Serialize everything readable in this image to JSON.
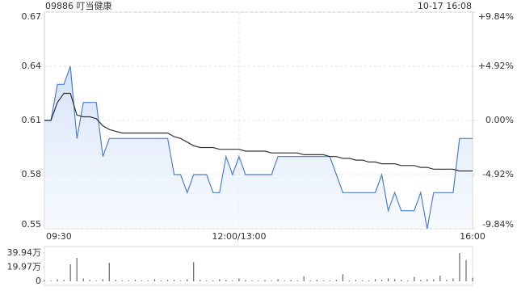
{
  "header": {
    "title": "09886 叮当健康",
    "time": "10-17 16:08"
  },
  "chart_data": [
    {
      "type": "line",
      "x": [
        0,
        5,
        10,
        15,
        20,
        25,
        30,
        35,
        40,
        45,
        50,
        55,
        60,
        65,
        70,
        75,
        80,
        85,
        90,
        95,
        100,
        105,
        110,
        115,
        120,
        125,
        130,
        135,
        140,
        145,
        150,
        155,
        160,
        165,
        170,
        175,
        180,
        185,
        190,
        195,
        200,
        205,
        210,
        215,
        220,
        225,
        230,
        235,
        240,
        245,
        250,
        255,
        260,
        265,
        270,
        275,
        280,
        285,
        290,
        295,
        300,
        305,
        310,
        315,
        320,
        325,
        330
      ],
      "xlim": [
        0,
        330
      ],
      "xticks": [
        {
          "value": 0,
          "label": "09:30"
        },
        {
          "value": 150,
          "label": "12:00/13:00"
        },
        {
          "value": 330,
          "label": "16:00"
        }
      ],
      "ylim": [
        0.55,
        0.67
      ],
      "yticks": [
        0.55,
        0.58,
        0.61,
        0.64,
        0.67
      ],
      "y2lim": [
        -9.84,
        9.84
      ],
      "y2ticks": [
        {
          "value": -9.84,
          "label": "-9.84%"
        },
        {
          "value": -4.92,
          "label": "-4.92%"
        },
        {
          "value": 0,
          "label": "0.00%"
        },
        {
          "value": 4.92,
          "label": "+4.92%"
        },
        {
          "value": 9.84,
          "label": "+9.84%"
        }
      ],
      "up_color": "#1a9e1a",
      "down_color": "#e0302b",
      "flat_color": "#555555",
      "grid": true,
      "series": [
        {
          "name": "price",
          "color": "#4a7fd8",
          "values": [
            0.61,
            0.61,
            0.63,
            0.63,
            0.64,
            0.6,
            0.62,
            0.62,
            0.62,
            0.59,
            0.6,
            0.6,
            0.6,
            0.6,
            0.6,
            0.6,
            0.6,
            0.6,
            0.6,
            0.6,
            0.58,
            0.58,
            0.57,
            0.58,
            0.58,
            0.58,
            0.57,
            0.57,
            0.59,
            0.58,
            0.59,
            0.58,
            0.58,
            0.58,
            0.58,
            0.58,
            0.59,
            0.59,
            0.59,
            0.59,
            0.59,
            0.59,
            0.59,
            0.59,
            0.59,
            0.58,
            0.57,
            0.57,
            0.57,
            0.57,
            0.57,
            0.57,
            0.58,
            0.56,
            0.57,
            0.56,
            0.56,
            0.56,
            0.57,
            0.55,
            0.57,
            0.57,
            0.57,
            0.57,
            0.6,
            0.6,
            0.6
          ]
        },
        {
          "name": "average",
          "color": "#333333",
          "values": [
            0.61,
            0.61,
            0.62,
            0.625,
            0.625,
            0.613,
            0.612,
            0.612,
            0.611,
            0.607,
            0.605,
            0.604,
            0.603,
            0.603,
            0.603,
            0.603,
            0.603,
            0.603,
            0.603,
            0.603,
            0.601,
            0.6,
            0.598,
            0.596,
            0.595,
            0.595,
            0.595,
            0.594,
            0.594,
            0.594,
            0.594,
            0.593,
            0.593,
            0.593,
            0.593,
            0.592,
            0.592,
            0.592,
            0.592,
            0.592,
            0.591,
            0.591,
            0.591,
            0.591,
            0.59,
            0.59,
            0.589,
            0.589,
            0.588,
            0.588,
            0.587,
            0.587,
            0.586,
            0.586,
            0.586,
            0.585,
            0.585,
            0.585,
            0.584,
            0.584,
            0.583,
            0.583,
            0.583,
            0.583,
            0.582,
            0.582,
            0.582
          ]
        }
      ]
    },
    {
      "type": "bar",
      "x": [
        0,
        5,
        10,
        15,
        20,
        25,
        30,
        35,
        40,
        45,
        50,
        55,
        60,
        65,
        70,
        75,
        80,
        85,
        90,
        95,
        100,
        105,
        110,
        115,
        120,
        125,
        130,
        135,
        140,
        145,
        150,
        155,
        160,
        165,
        170,
        175,
        180,
        185,
        190,
        195,
        200,
        205,
        210,
        215,
        220,
        225,
        230,
        235,
        240,
        245,
        250,
        255,
        260,
        265,
        270,
        275,
        280,
        285,
        290,
        295,
        300,
        305,
        310,
        315,
        320,
        325,
        330
      ],
      "xlim": [
        0,
        330
      ],
      "ylim": [
        0,
        39.94
      ],
      "yticks": [
        0,
        {
          "value": 19.97,
          "label": "19.97万"
        },
        {
          "value": 39.94,
          "label": "39.94万"
        }
      ],
      "color": "#666666",
      "values": [
        2,
        1,
        3,
        2,
        24,
        33,
        4,
        2,
        1,
        3,
        26,
        2,
        1,
        1,
        2,
        1,
        1,
        3,
        1,
        2,
        2,
        1,
        3,
        27,
        2,
        1,
        1,
        3,
        2,
        1,
        4,
        2,
        1,
        1,
        2,
        1,
        3,
        1,
        2,
        1,
        7,
        1,
        2,
        1,
        1,
        2,
        10,
        1,
        2,
        1,
        1,
        3,
        2,
        4,
        3,
        2,
        1,
        6,
        2,
        3,
        3,
        8,
        2,
        4,
        39.94,
        30,
        5
      ]
    }
  ]
}
